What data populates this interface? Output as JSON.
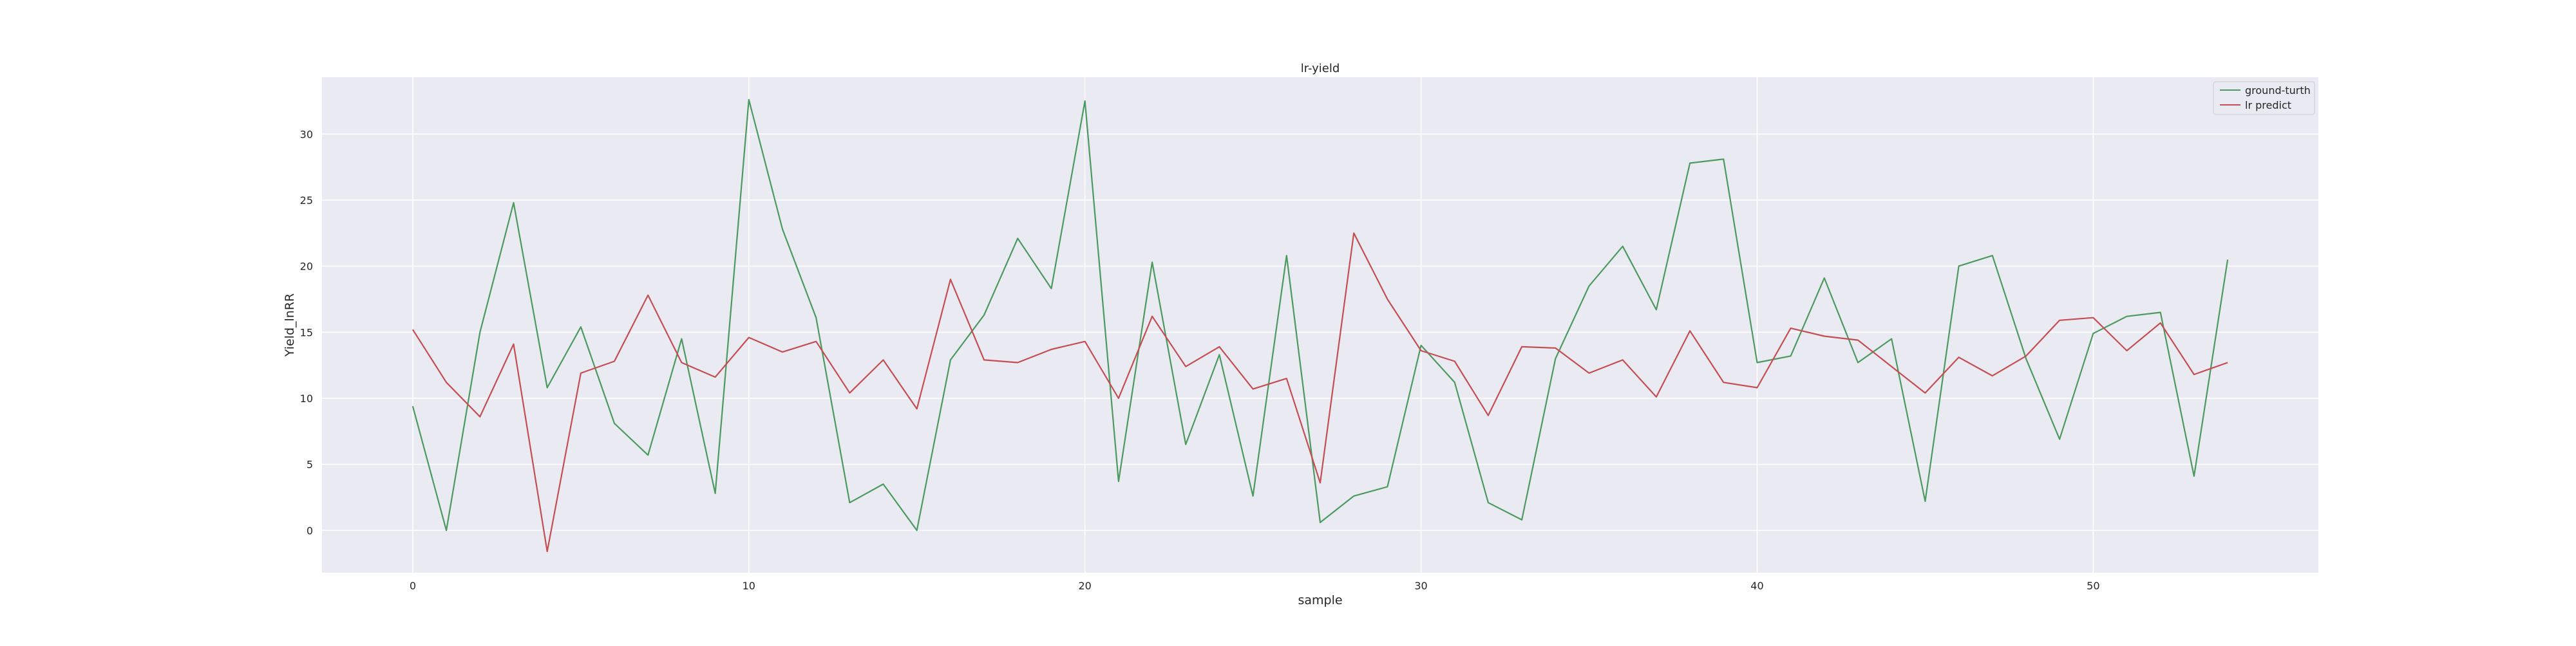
{
  "chart_data": {
    "type": "line",
    "title": "lr-yield",
    "xlabel": "sample",
    "ylabel": "Yield_lnRR",
    "xlim": [
      -2.7,
      56.7
    ],
    "ylim": [
      -3.2,
      34.3
    ],
    "xticks": [
      0,
      10,
      20,
      30,
      40,
      50
    ],
    "yticks": [
      0,
      5,
      10,
      15,
      20,
      25,
      30
    ],
    "grid": true,
    "legend_position": "top-right",
    "x": [
      0,
      1,
      2,
      3,
      4,
      5,
      6,
      7,
      8,
      9,
      10,
      11,
      12,
      13,
      14,
      15,
      16,
      17,
      18,
      19,
      20,
      21,
      22,
      23,
      24,
      25,
      26,
      27,
      28,
      29,
      30,
      31,
      32,
      33,
      34,
      35,
      36,
      37,
      38,
      39,
      40,
      41,
      42,
      43,
      44,
      45,
      46,
      47,
      48,
      49,
      50,
      51,
      52,
      53,
      54
    ],
    "series": [
      {
        "name": "ground-turth",
        "color": "#4c9a5f",
        "values": [
          9.4,
          0.0,
          15.0,
          24.8,
          10.8,
          15.4,
          8.1,
          5.7,
          14.5,
          2.8,
          32.6,
          22.8,
          16.1,
          2.1,
          3.5,
          0.0,
          12.9,
          16.3,
          22.1,
          18.3,
          32.5,
          3.7,
          20.3,
          6.5,
          13.3,
          2.6,
          20.8,
          0.6,
          2.6,
          3.3,
          14.0,
          11.2,
          2.1,
          0.8,
          13.0,
          18.5,
          21.5,
          16.7,
          27.8,
          28.1,
          12.7,
          13.2,
          19.1,
          12.7,
          14.5,
          2.2,
          20.0,
          20.8,
          13.0,
          6.9,
          14.9,
          16.2,
          16.5,
          4.1,
          20.5
        ]
      },
      {
        "name": "lr predict",
        "color": "#c44e52",
        "values": [
          15.2,
          11.2,
          8.6,
          14.1,
          -1.6,
          11.9,
          12.8,
          17.8,
          12.7,
          11.6,
          14.6,
          13.5,
          14.3,
          10.4,
          12.9,
          9.2,
          19.0,
          12.9,
          12.7,
          13.7,
          14.3,
          10.0,
          16.2,
          12.4,
          13.9,
          10.7,
          11.5,
          3.6,
          22.5,
          17.5,
          13.6,
          12.8,
          8.7,
          13.9,
          13.8,
          11.9,
          12.9,
          10.1,
          15.1,
          11.2,
          10.8,
          15.3,
          14.7,
          14.4,
          12.4,
          10.4,
          13.1,
          11.7,
          13.2,
          15.9,
          16.1,
          13.6,
          15.7,
          11.8,
          12.7
        ]
      }
    ]
  }
}
